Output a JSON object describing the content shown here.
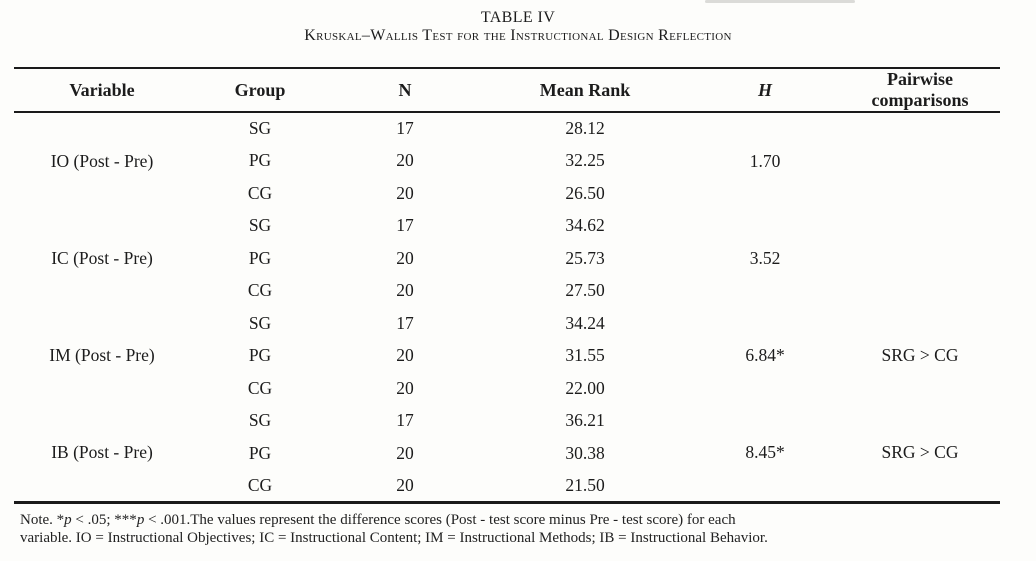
{
  "caption": {
    "label": "TABLE IV",
    "title": "Kruskal–Wallis Test for the Instructional Design Reflection"
  },
  "table": {
    "headers": {
      "variable": "Variable",
      "group": "Group",
      "n": "N",
      "mean_rank": "Mean Rank",
      "h": "H",
      "pairwise_line1": "Pairwise",
      "pairwise_line2": "comparisons"
    },
    "blocks": [
      {
        "variable": "IO (Post - Pre)",
        "h": "1.70",
        "pairwise": "",
        "rows": [
          {
            "group": "SG",
            "n": "17",
            "mean_rank": "28.12"
          },
          {
            "group": "PG",
            "n": "20",
            "mean_rank": "32.25"
          },
          {
            "group": "CG",
            "n": "20",
            "mean_rank": "26.50"
          }
        ]
      },
      {
        "variable": "IC (Post - Pre)",
        "h": "3.52",
        "pairwise": "",
        "rows": [
          {
            "group": "SG",
            "n": "17",
            "mean_rank": "34.62"
          },
          {
            "group": "PG",
            "n": "20",
            "mean_rank": "25.73"
          },
          {
            "group": "CG",
            "n": "20",
            "mean_rank": "27.50"
          }
        ]
      },
      {
        "variable": "IM (Post - Pre)",
        "h": "6.84*",
        "pairwise": "SRG > CG",
        "rows": [
          {
            "group": "SG",
            "n": "17",
            "mean_rank": "34.24"
          },
          {
            "group": "PG",
            "n": "20",
            "mean_rank": "31.55"
          },
          {
            "group": "CG",
            "n": "20",
            "mean_rank": "22.00"
          }
        ]
      },
      {
        "variable": "IB (Post - Pre)",
        "h": "8.45*",
        "pairwise": "SRG > CG",
        "rows": [
          {
            "group": "SG",
            "n": "17",
            "mean_rank": "36.21"
          },
          {
            "group": "PG",
            "n": "20",
            "mean_rank": "30.38"
          },
          {
            "group": "CG",
            "n": "20",
            "mean_rank": "21.50"
          }
        ]
      }
    ]
  },
  "note": {
    "seg1": "Note. *",
    "p": "p",
    "seg2": " < .05; ***",
    "seg3": " < .001.The values represent the difference scores (Post - test score minus Pre - test score) for each",
    "line2": "variable. IO = Instructional Objectives; IC = Instructional Content; IM = Instructional Methods; IB = Instructional Behavior."
  },
  "colors": {
    "text": "#1c1c1c",
    "background": "#fdfdfb",
    "rule": "#1a1a1a"
  }
}
